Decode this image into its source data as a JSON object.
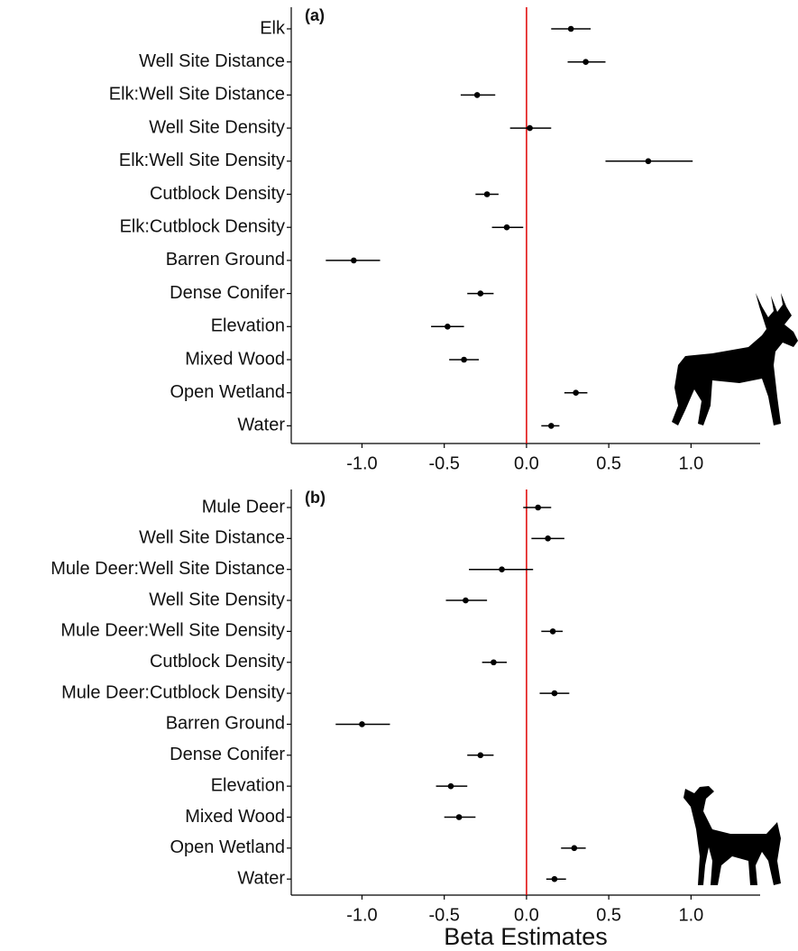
{
  "chart_data": [
    {
      "type": "dotwhisker",
      "panel_label": "(a)",
      "categories": [
        "Elk",
        "Well Site Distance",
        "Elk:Well Site Distance",
        "Well Site Density",
        "Elk:Well Site Density",
        "Cutblock Density",
        "Elk:Cutblock Density",
        "Barren Ground",
        "Dense Conifer",
        "Elevation",
        "Mixed Wood",
        "Open Wetland",
        "Water"
      ],
      "values": [
        0.27,
        0.36,
        -0.3,
        0.02,
        0.74,
        -0.24,
        -0.12,
        -1.05,
        -0.28,
        -0.48,
        -0.38,
        0.3,
        0.15
      ],
      "lower": [
        0.15,
        0.25,
        -0.4,
        -0.1,
        0.48,
        -0.31,
        -0.21,
        -1.22,
        -0.36,
        -0.58,
        -0.47,
        0.23,
        0.09
      ],
      "upper": [
        0.39,
        0.48,
        -0.19,
        0.15,
        1.01,
        -0.17,
        -0.02,
        -0.89,
        -0.2,
        -0.38,
        -0.29,
        0.37,
        0.2
      ],
      "color": "#000000",
      "xlim": [
        -1.43,
        1.42
      ],
      "xticks": [
        {
          "value": -1,
          "label": "-1.0"
        },
        -0.5,
        {
          "value": 0,
          "label": "0.0"
        },
        0.5,
        {
          "value": 1,
          "label": "1.0"
        }
      ],
      "reference_line": 0,
      "reference_color": "#e00000"
    },
    {
      "type": "dotwhisker",
      "panel_label": "(b)",
      "categories": [
        "Mule Deer",
        "Well Site Distance",
        "Mule Deer:Well Site Distance",
        "Well Site Density",
        "Mule Deer:Well Site Density",
        "Cutblock Density",
        "Mule Deer:Cutblock Density",
        "Barren Ground",
        "Dense Conifer",
        "Elevation",
        "Mixed Wood",
        "Open Wetland",
        "Water"
      ],
      "values": [
        0.07,
        0.13,
        -0.15,
        -0.37,
        0.16,
        -0.2,
        0.17,
        -1.0,
        -0.28,
        -0.46,
        -0.41,
        0.29,
        0.17
      ],
      "lower": [
        -0.02,
        0.03,
        -0.35,
        -0.49,
        0.09,
        -0.27,
        0.08,
        -1.16,
        -0.36,
        -0.55,
        -0.5,
        0.21,
        0.12
      ],
      "upper": [
        0.15,
        0.23,
        0.04,
        -0.24,
        0.22,
        -0.12,
        0.26,
        -0.83,
        -0.2,
        -0.36,
        -0.31,
        0.36,
        0.24
      ],
      "color": "#000000",
      "xlim": [
        -1.43,
        1.42
      ],
      "xticks": [
        {
          "value": -1,
          "label": "-1.0"
        },
        -0.5,
        {
          "value": 0,
          "label": "0.0"
        },
        0.5,
        {
          "value": 1,
          "label": "1.0"
        }
      ],
      "reference_line": 0,
      "reference_color": "#e00000",
      "x_label": "Beta Estimates"
    }
  ]
}
